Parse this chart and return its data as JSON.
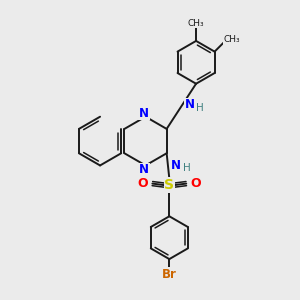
{
  "background_color": "#ebebeb",
  "bond_color": "#1a1a1a",
  "N_color": "#0000ff",
  "O_color": "#ff0000",
  "S_color": "#cccc00",
  "Br_color": "#cc6600",
  "H_color": "#408080",
  "figsize": [
    3.0,
    3.0
  ],
  "dpi": 100,
  "xlim": [
    0,
    10
  ],
  "ylim": [
    0,
    10
  ]
}
